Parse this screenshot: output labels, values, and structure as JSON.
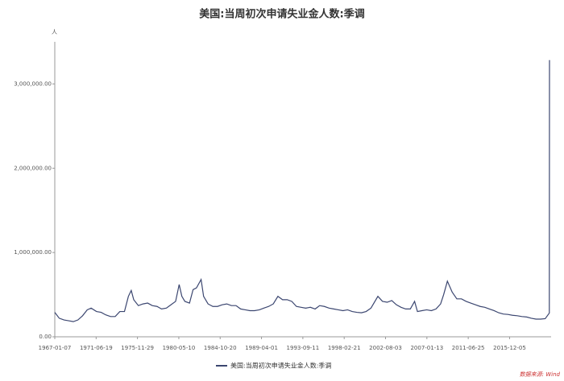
{
  "chart_data": {
    "type": "line",
    "title": "美国:当周初次申请失业金人数:季调",
    "y_unit": "人",
    "source": "数据来源: Wind",
    "x": [
      "1967-01-07",
      "1967-07-01",
      "1968-01-06",
      "1968-07-06",
      "1969-01-04",
      "1969-07-05",
      "1970-01-03",
      "1970-07-04",
      "1970-12-05",
      "1971-07-03",
      "1972-01-01",
      "1972-07-01",
      "1973-01-06",
      "1973-07-07",
      "1974-01-05",
      "1974-07-06",
      "1974-12-07",
      "1975-03-29",
      "1975-07-05",
      "1976-01-03",
      "1976-07-03",
      "1977-01-01",
      "1977-07-02",
      "1978-01-07",
      "1978-07-01",
      "1979-01-06",
      "1979-07-07",
      "1980-01-05",
      "1980-05-24",
      "1980-09-06",
      "1981-01-03",
      "1981-07-04",
      "1981-11-21",
      "1982-04-03",
      "1982-10-02",
      "1983-01-08",
      "1983-07-02",
      "1984-01-07",
      "1984-07-07",
      "1985-01-05",
      "1985-07-06",
      "1986-01-04",
      "1986-07-05",
      "1987-01-03",
      "1987-07-04",
      "1988-01-02",
      "1988-07-02",
      "1989-01-07",
      "1989-07-01",
      "1990-01-06",
      "1990-07-07",
      "1991-01-05",
      "1991-07-06",
      "1992-01-04",
      "1992-07-04",
      "1993-01-02",
      "1993-07-03",
      "1994-01-01",
      "1994-07-02",
      "1995-01-07",
      "1995-07-01",
      "1996-01-06",
      "1996-07-06",
      "1997-01-04",
      "1997-07-05",
      "1998-01-03",
      "1998-07-04",
      "1999-01-02",
      "1999-07-03",
      "2000-01-01",
      "2000-07-01",
      "2001-01-06",
      "2001-10-06",
      "2002-04-06",
      "2002-10-05",
      "2003-04-05",
      "2003-10-04",
      "2004-04-03",
      "2004-10-02",
      "2005-04-02",
      "2005-09-17",
      "2006-01-07",
      "2006-07-01",
      "2007-01-06",
      "2007-07-07",
      "2008-01-05",
      "2008-07-05",
      "2008-11-01",
      "2009-03-28",
      "2009-10-03",
      "2010-04-03",
      "2010-10-02",
      "2011-04-02",
      "2011-10-01",
      "2012-04-07",
      "2012-10-06",
      "2013-04-06",
      "2013-10-05",
      "2014-04-05",
      "2014-10-04",
      "2015-04-04",
      "2015-10-03",
      "2016-04-02",
      "2016-10-01",
      "2017-04-01",
      "2017-10-07",
      "2018-04-07",
      "2018-10-06",
      "2019-04-06",
      "2019-10-05",
      "2020-03-14",
      "2020-03-21"
    ],
    "series": [
      {
        "name": "美国:当周初次申请失业金人数:季调",
        "color": "#3b4670",
        "values": [
          290000,
          220000,
          200000,
          190000,
          180000,
          200000,
          250000,
          320000,
          340000,
          300000,
          290000,
          260000,
          240000,
          240000,
          300000,
          300000,
          480000,
          550000,
          440000,
          370000,
          390000,
          400000,
          370000,
          360000,
          330000,
          340000,
          380000,
          420000,
          620000,
          480000,
          420000,
          400000,
          560000,
          580000,
          680000,
          480000,
          390000,
          360000,
          360000,
          380000,
          390000,
          370000,
          370000,
          330000,
          320000,
          310000,
          310000,
          320000,
          340000,
          360000,
          390000,
          480000,
          440000,
          440000,
          420000,
          360000,
          350000,
          340000,
          350000,
          330000,
          370000,
          360000,
          340000,
          330000,
          320000,
          310000,
          320000,
          300000,
          290000,
          285000,
          300000,
          340000,
          480000,
          420000,
          410000,
          430000,
          380000,
          350000,
          330000,
          330000,
          420000,
          300000,
          310000,
          320000,
          310000,
          330000,
          390000,
          500000,
          660000,
          530000,
          450000,
          450000,
          420000,
          400000,
          380000,
          360000,
          350000,
          330000,
          310000,
          285000,
          270000,
          265000,
          255000,
          250000,
          240000,
          235000,
          220000,
          210000,
          210000,
          215000,
          282000,
          3283000
        ]
      }
    ],
    "xlim": [
      "1967-01-07",
      "2020-03-21"
    ],
    "xticks": [
      "1967-01-07",
      "1971-06-19",
      "1975-11-29",
      "1980-05-10",
      "1984-10-20",
      "1989-04-01",
      "1993-09-11",
      "1998-02-21",
      "2002-08-03",
      "2007-01-13",
      "2011-06-25",
      "2015-12-05"
    ],
    "ylim": [
      0,
      3500000
    ],
    "yticks": [
      {
        "value": 0,
        "label": "0.00"
      },
      {
        "value": 1000000,
        "label": "1,000,000.00"
      },
      {
        "value": 2000000,
        "label": "2,000,000.00"
      },
      {
        "value": 3000000,
        "label": "3,000,000.00"
      }
    ],
    "grid": false,
    "legend": "bottom"
  }
}
